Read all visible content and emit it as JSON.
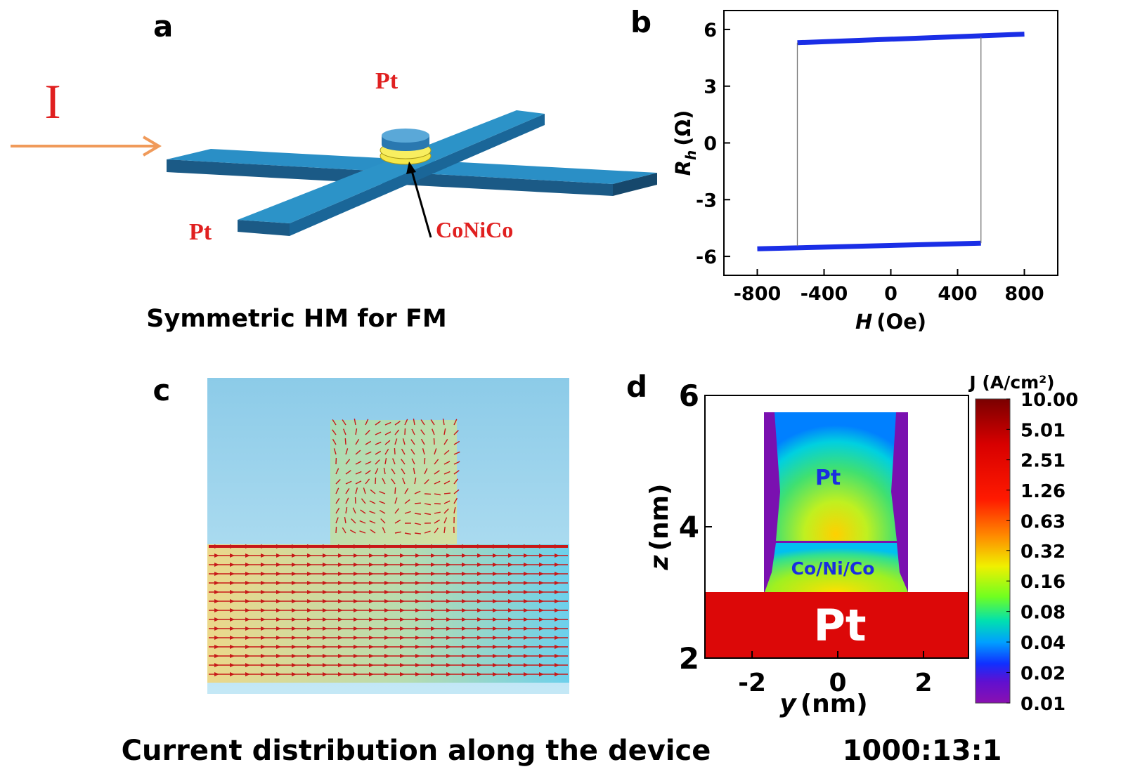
{
  "panels": {
    "a": {
      "label": "a",
      "current": "I",
      "pt_top": "Pt",
      "pt_left": "Pt",
      "ferromagnet": "CoNiCo",
      "caption": "Symmetric HM for FM"
    },
    "c": {
      "label": "c",
      "caption": "Current distribution along the device"
    },
    "d": {
      "caption": "1000:13:1"
    }
  },
  "chart_data": [
    {
      "type": "line",
      "label": "b",
      "xlabel": {
        "symbol": "H",
        "unit": "(Oe)"
      },
      "ylabel": {
        "symbol": "R",
        "subscript": "h",
        "unit": "(Ω)"
      },
      "xlim": [
        -1000,
        1000
      ],
      "xticks": [
        -800,
        -400,
        0,
        400,
        800
      ],
      "ylim": [
        -7,
        7
      ],
      "yticks": [
        -6,
        -3,
        0,
        3,
        6
      ],
      "series": [
        {
          "color": "#1a2ee6",
          "x": [
            -560,
            800
          ],
          "values": [
            5.3,
            5.75
          ]
        },
        {
          "color": "#1a2ee6",
          "x": [
            -800,
            540
          ],
          "values": [
            -5.6,
            -5.3
          ]
        },
        {
          "color": "#777777",
          "x": [
            540,
            540
          ],
          "values": [
            -5.3,
            5.6
          ]
        },
        {
          "color": "#777777",
          "x": [
            -560,
            -560
          ],
          "values": [
            -5.45,
            5.3
          ]
        }
      ]
    },
    {
      "type": "heatmap",
      "label": "d",
      "xlabel": {
        "symbol": "y",
        "unit": "(nm)"
      },
      "ylabel": {
        "symbol": "z",
        "unit": "(nm)"
      },
      "xlim": [
        -3.1,
        3.05
      ],
      "xticks": [
        -2,
        0,
        2
      ],
      "ylim": [
        2,
        6
      ],
      "yticks": [
        2,
        4,
        6
      ],
      "region_labels": [
        "Pt",
        "Co/Ni/Co",
        "Pt"
      ],
      "colorbar": {
        "title": "J (A/cm²)",
        "scale": "log",
        "lim": [
          0.01,
          10
        ],
        "ticks": [
          {
            "value": 10,
            "label": "10.00"
          },
          5.01,
          2.51,
          1.26,
          0.63,
          0.32,
          0.16,
          0.08,
          0.04,
          0.02,
          0.01
        ]
      }
    }
  ]
}
